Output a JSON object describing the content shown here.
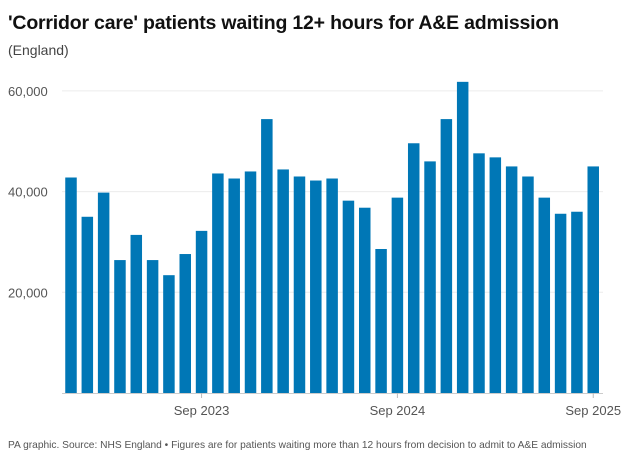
{
  "chart_data": {
    "type": "bar",
    "title": "'Corridor care' patients waiting 12+ hours for A&E admission",
    "subtitle": "(England)",
    "footer": "PA graphic. Source: NHS England • Figures are for patients waiting more than 12 hours from decision to admit to A&E admission",
    "categories": [
      "Jan 2023",
      "Feb 2023",
      "Mar 2023",
      "Apr 2023",
      "May 2023",
      "Jun 2023",
      "Jul 2023",
      "Aug 2023",
      "Sep 2023",
      "Oct 2023",
      "Nov 2023",
      "Dec 2023",
      "Jan 2024",
      "Feb 2024",
      "Mar 2024",
      "Apr 2024",
      "May 2024",
      "Jun 2024",
      "Jul 2024",
      "Aug 2024",
      "Sep 2024",
      "Oct 2024",
      "Nov 2024",
      "Dec 2024",
      "Jan 2025",
      "Feb 2025",
      "Mar 2025",
      "Apr 2025",
      "May 2025",
      "Jun 2025",
      "Jul 2025",
      "Aug 2025",
      "Sep 2025"
    ],
    "values": [
      42800,
      35000,
      39800,
      26400,
      31400,
      26400,
      23400,
      27600,
      32200,
      43600,
      42600,
      44000,
      54400,
      44400,
      43000,
      42200,
      42600,
      38200,
      36800,
      28600,
      38800,
      49600,
      46000,
      54400,
      61800,
      47600,
      46800,
      45000,
      43000,
      38800,
      35600,
      36000,
      45000
    ],
    "x_tick_labels": [
      {
        "category": "Sep 2023",
        "label": "Sep 2023"
      },
      {
        "category": "Sep 2024",
        "label": "Sep 2024"
      },
      {
        "category": "Sep 2025",
        "label": "Sep 2025"
      }
    ],
    "y_ticks": [
      20000,
      40000,
      60000
    ],
    "y_tick_labels": [
      "20,000",
      "40,000",
      "60,000"
    ],
    "ylim": [
      0,
      63000
    ],
    "grid": true,
    "bar_color": "#0077b6",
    "xlabel": "",
    "ylabel": ""
  }
}
